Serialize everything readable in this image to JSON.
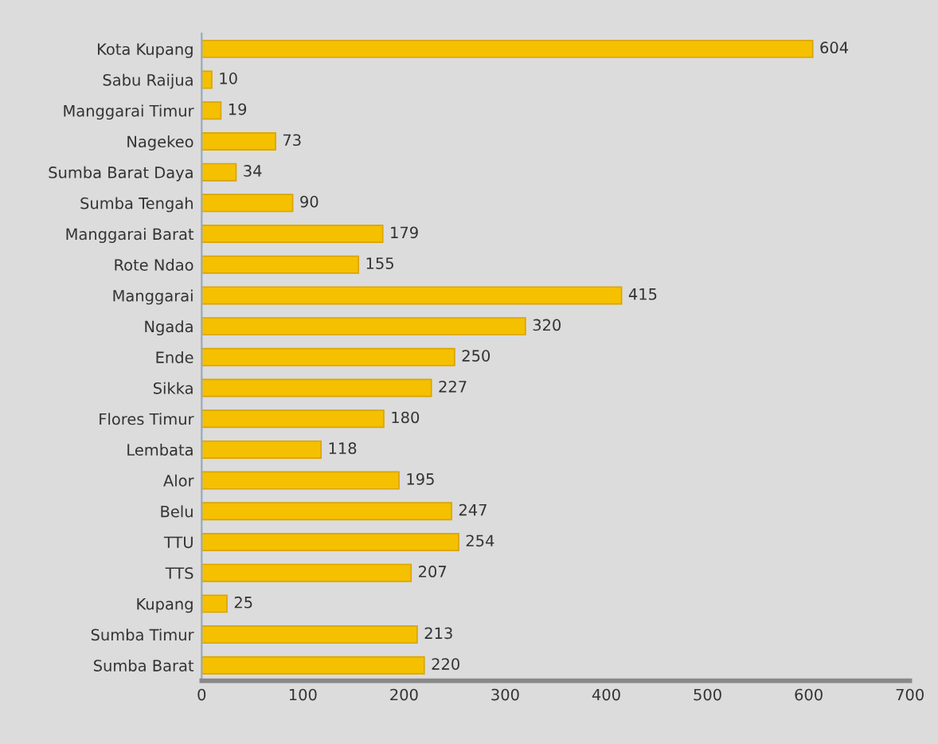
{
  "chart_data": {
    "type": "bar",
    "orientation": "horizontal",
    "categories": [
      "Kota Kupang",
      "Sabu Raijua",
      "Manggarai Timur",
      "Nagekeo",
      "Sumba Barat Daya",
      "Sumba Tengah",
      "Manggarai Barat",
      "Rote Ndao",
      "Manggarai",
      "Ngada",
      "Ende",
      "Sikka",
      "Flores Timur",
      "Lembata",
      "Alor",
      "Belu",
      "TTU",
      "TTS",
      "Kupang",
      "Sumba Timur",
      "Sumba Barat"
    ],
    "values": [
      604,
      10,
      19,
      73,
      34,
      90,
      179,
      155,
      415,
      320,
      250,
      227,
      180,
      118,
      195,
      247,
      254,
      207,
      25,
      213,
      220
    ],
    "color": "#f5c000",
    "xlim": [
      0,
      700
    ],
    "xticks": [
      0,
      100,
      200,
      300,
      400,
      500,
      600,
      700
    ],
    "data_labels": true,
    "grid": false,
    "legend": false
  }
}
